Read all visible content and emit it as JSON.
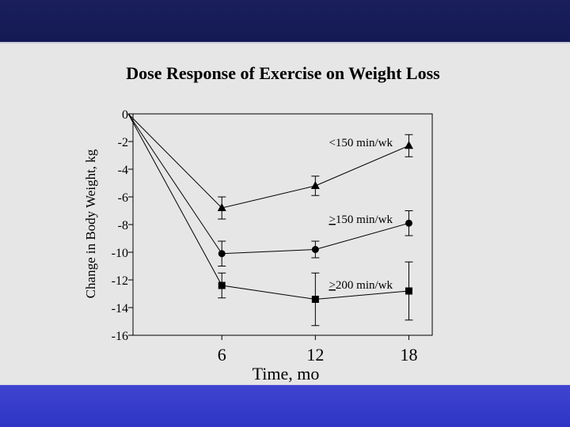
{
  "slide": {
    "top_bar_color": "#16194f",
    "bottom_bar_color": "#3539c8",
    "background_color": "#e6e6e6"
  },
  "chart_data": {
    "type": "line",
    "title": "Dose Response of Exercise on Weight Loss",
    "xlabel": "Time, mo",
    "ylabel": "Change in Body Weight, kg",
    "x_ticks": [
      6,
      12,
      18
    ],
    "y_ticks": [
      0,
      -2,
      -4,
      -6,
      -8,
      -10,
      -12,
      -14,
      -16
    ],
    "xlim": [
      0.3,
      19.5
    ],
    "ylim": [
      -16,
      0
    ],
    "legend": "inline labels",
    "series": [
      {
        "name": "<150 min/wk",
        "label_prefix": "",
        "label_text": "<150 min/wk",
        "marker": "triangle",
        "x": [
          0,
          6,
          12,
          18
        ],
        "y": [
          0,
          -6.8,
          -5.2,
          -2.3
        ],
        "err": [
          0,
          0.8,
          0.7,
          0.8
        ]
      },
      {
        "name": "≥150 min/wk",
        "label_prefix": ">",
        "label_text": "150 min/wk",
        "marker": "circle",
        "x": [
          0,
          6,
          12,
          18
        ],
        "y": [
          0,
          -10.1,
          -9.8,
          -7.9
        ],
        "err": [
          0,
          0.9,
          0.6,
          0.9
        ]
      },
      {
        "name": "≥200 min/wk",
        "label_prefix": ">",
        "label_text": "200 min/wk",
        "marker": "square",
        "x": [
          0,
          6,
          12,
          18
        ],
        "y": [
          0,
          -12.4,
          -13.4,
          -12.8
        ],
        "err": [
          0,
          0.9,
          1.9,
          2.1
        ]
      }
    ]
  }
}
